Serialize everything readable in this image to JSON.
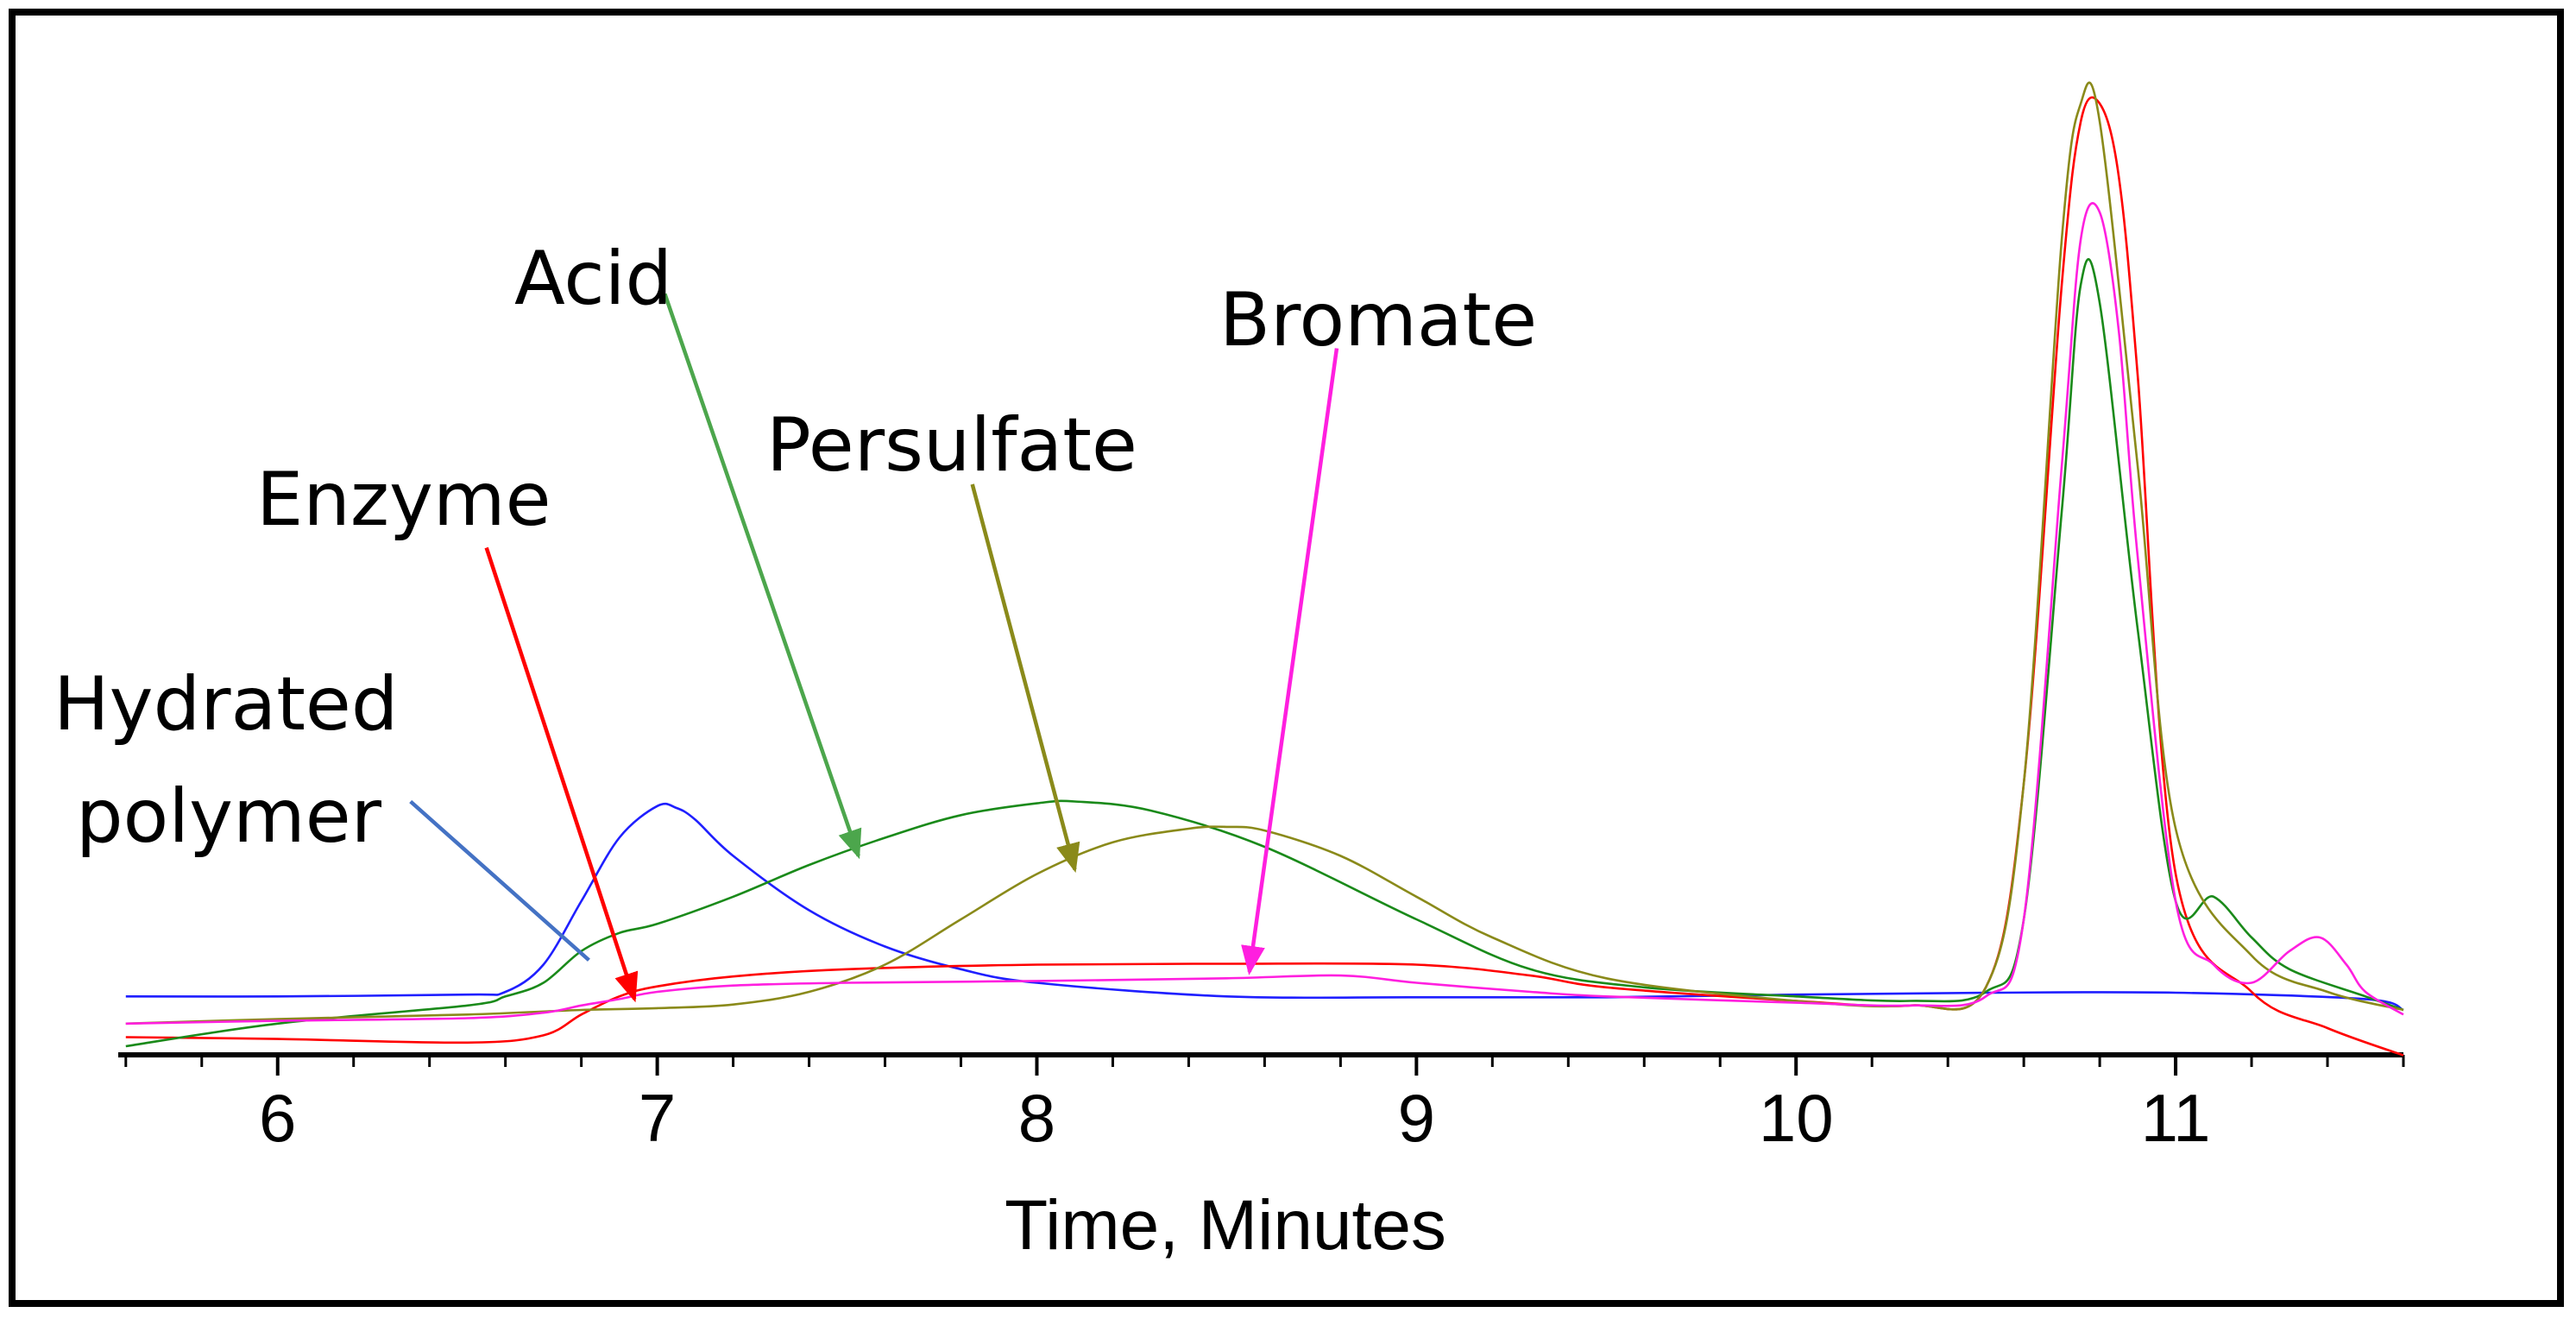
{
  "chart_data": {
    "type": "line",
    "title": "",
    "xlabel": "Time, Minutes",
    "ylabel": "",
    "xlim": [
      5.58,
      11.6
    ],
    "ylim": [
      0,
      100
    ],
    "x_ticks": [
      6,
      7,
      8,
      9,
      10,
      11
    ],
    "x_tick_labels": [
      "6",
      "7",
      "8",
      "9",
      "10",
      "11"
    ],
    "grid": false,
    "series": [
      {
        "name": "Hydrated polymer",
        "color": "#1f1fff",
        "x": [
          5.6,
          6.0,
          6.5,
          6.6,
          6.7,
          6.8,
          6.9,
          7.0,
          7.05,
          7.1,
          7.2,
          7.4,
          7.6,
          7.8,
          8.0,
          8.5,
          9.0,
          9.5,
          10.0,
          10.5,
          11.0,
          11.5,
          11.6
        ],
        "y": [
          1.5,
          1.5,
          1.7,
          2.0,
          5.0,
          12.0,
          19.0,
          22.5,
          22.3,
          21.0,
          17.0,
          11.0,
          7.0,
          4.5,
          3.0,
          1.5,
          1.4,
          1.4,
          1.7,
          1.9,
          1.9,
          1.2,
          0.0
        ]
      },
      {
        "name": "Enzyme",
        "color": "#ff0000",
        "x": [
          5.6,
          6.0,
          6.5,
          6.7,
          6.8,
          6.9,
          7.0,
          7.2,
          7.5,
          8.0,
          8.5,
          9.0,
          9.3,
          9.5,
          10.0,
          10.3,
          10.5,
          10.6,
          10.7,
          10.75,
          10.8,
          10.85,
          10.9,
          11.0,
          11.2,
          11.4,
          11.6
        ],
        "y": [
          -3.0,
          -3.2,
          -3.6,
          -2.8,
          -0.5,
          1.5,
          2.6,
          3.7,
          4.5,
          5.0,
          5.1,
          5.0,
          3.8,
          2.5,
          1.0,
          0.5,
          2.5,
          25.0,
          80.0,
          98.0,
          100.0,
          92.0,
          70.0,
          15.0,
          2.0,
          -2.0,
          -5.0
        ]
      },
      {
        "name": "Acid",
        "color": "#1a8a1a",
        "x": [
          5.6,
          6.0,
          6.5,
          6.6,
          6.7,
          6.8,
          6.9,
          7.0,
          7.2,
          7.4,
          7.6,
          7.8,
          8.0,
          8.1,
          8.3,
          8.6,
          9.0,
          9.3,
          9.6,
          10.0,
          10.3,
          10.5,
          10.6,
          10.7,
          10.75,
          10.8,
          10.9,
          11.0,
          11.1,
          11.2,
          11.3,
          11.5,
          11.6
        ],
        "y": [
          -4.0,
          -1.5,
          0.5,
          1.5,
          3.0,
          6.5,
          8.5,
          9.5,
          12.5,
          16.0,
          19.0,
          21.5,
          22.8,
          23.0,
          22.0,
          18.0,
          10.0,
          4.5,
          2.5,
          1.5,
          1.0,
          2.0,
          10.0,
          55.0,
          80.0,
          78.0,
          42.0,
          12.0,
          12.5,
          8.0,
          4.5,
          1.5,
          0.0
        ]
      },
      {
        "name": "Persulfate",
        "color": "#8a8a1a",
        "x": [
          5.6,
          6.0,
          6.5,
          6.8,
          7.0,
          7.2,
          7.4,
          7.6,
          7.8,
          8.0,
          8.2,
          8.4,
          8.5,
          8.6,
          8.8,
          9.0,
          9.2,
          9.5,
          10.0,
          10.3,
          10.5,
          10.6,
          10.7,
          10.75,
          10.8,
          10.9,
          11.0,
          11.2,
          11.4,
          11.6
        ],
        "y": [
          -1.5,
          -1.0,
          -0.5,
          0.0,
          0.2,
          0.6,
          2.0,
          5.0,
          10.0,
          15.0,
          18.5,
          20.0,
          20.2,
          19.8,
          17.0,
          12.5,
          8.0,
          3.5,
          1.0,
          0.5,
          2.5,
          25.0,
          85.0,
          100.0,
          98.0,
          60.0,
          20.0,
          6.0,
          2.0,
          0.0
        ]
      },
      {
        "name": "Bromate",
        "color": "#ff1fdf",
        "x": [
          5.6,
          6.0,
          6.5,
          6.7,
          6.8,
          6.9,
          7.0,
          7.2,
          7.5,
          8.0,
          8.5,
          8.8,
          9.0,
          9.3,
          9.5,
          10.0,
          10.3,
          10.5,
          10.6,
          10.7,
          10.75,
          10.8,
          10.85,
          10.9,
          11.0,
          11.1,
          11.2,
          11.3,
          11.38,
          11.45,
          11.5,
          11.6
        ],
        "y": [
          -1.5,
          -1.2,
          -0.9,
          -0.3,
          0.5,
          1.2,
          2.0,
          2.7,
          3.0,
          3.2,
          3.5,
          3.8,
          3.0,
          2.0,
          1.5,
          0.8,
          0.5,
          1.5,
          10.0,
          60.0,
          85.0,
          88.0,
          75.0,
          50.0,
          12.0,
          5.0,
          3.0,
          6.5,
          8.0,
          5.0,
          2.0,
          -0.5
        ]
      }
    ],
    "annotations": [
      {
        "text": "Hydrated",
        "text2": "polymer",
        "color": "#4472c4",
        "from_x": 6.35,
        "from_y": 23.0,
        "to_x": 6.82,
        "to_y": 5.5
      },
      {
        "text": "Enzyme",
        "color": "#ff0000",
        "from_x": 6.55,
        "from_y": 51.0,
        "to_x": 6.94,
        "to_y": 1.2
      },
      {
        "text": "Acid",
        "color": "#4ca64c",
        "from_x": 7.02,
        "from_y": 79.0,
        "to_x": 7.53,
        "to_y": 17.0
      },
      {
        "text": "Persulfate",
        "color": "#8a8a1a",
        "from_x": 7.83,
        "from_y": 58.0,
        "to_x": 8.1,
        "to_y": 15.5
      },
      {
        "text": "Bromate",
        "color": "#ff1fdf",
        "from_x": 8.79,
        "from_y": 73.0,
        "to_x": 8.56,
        "to_y": 4.2
      }
    ]
  }
}
